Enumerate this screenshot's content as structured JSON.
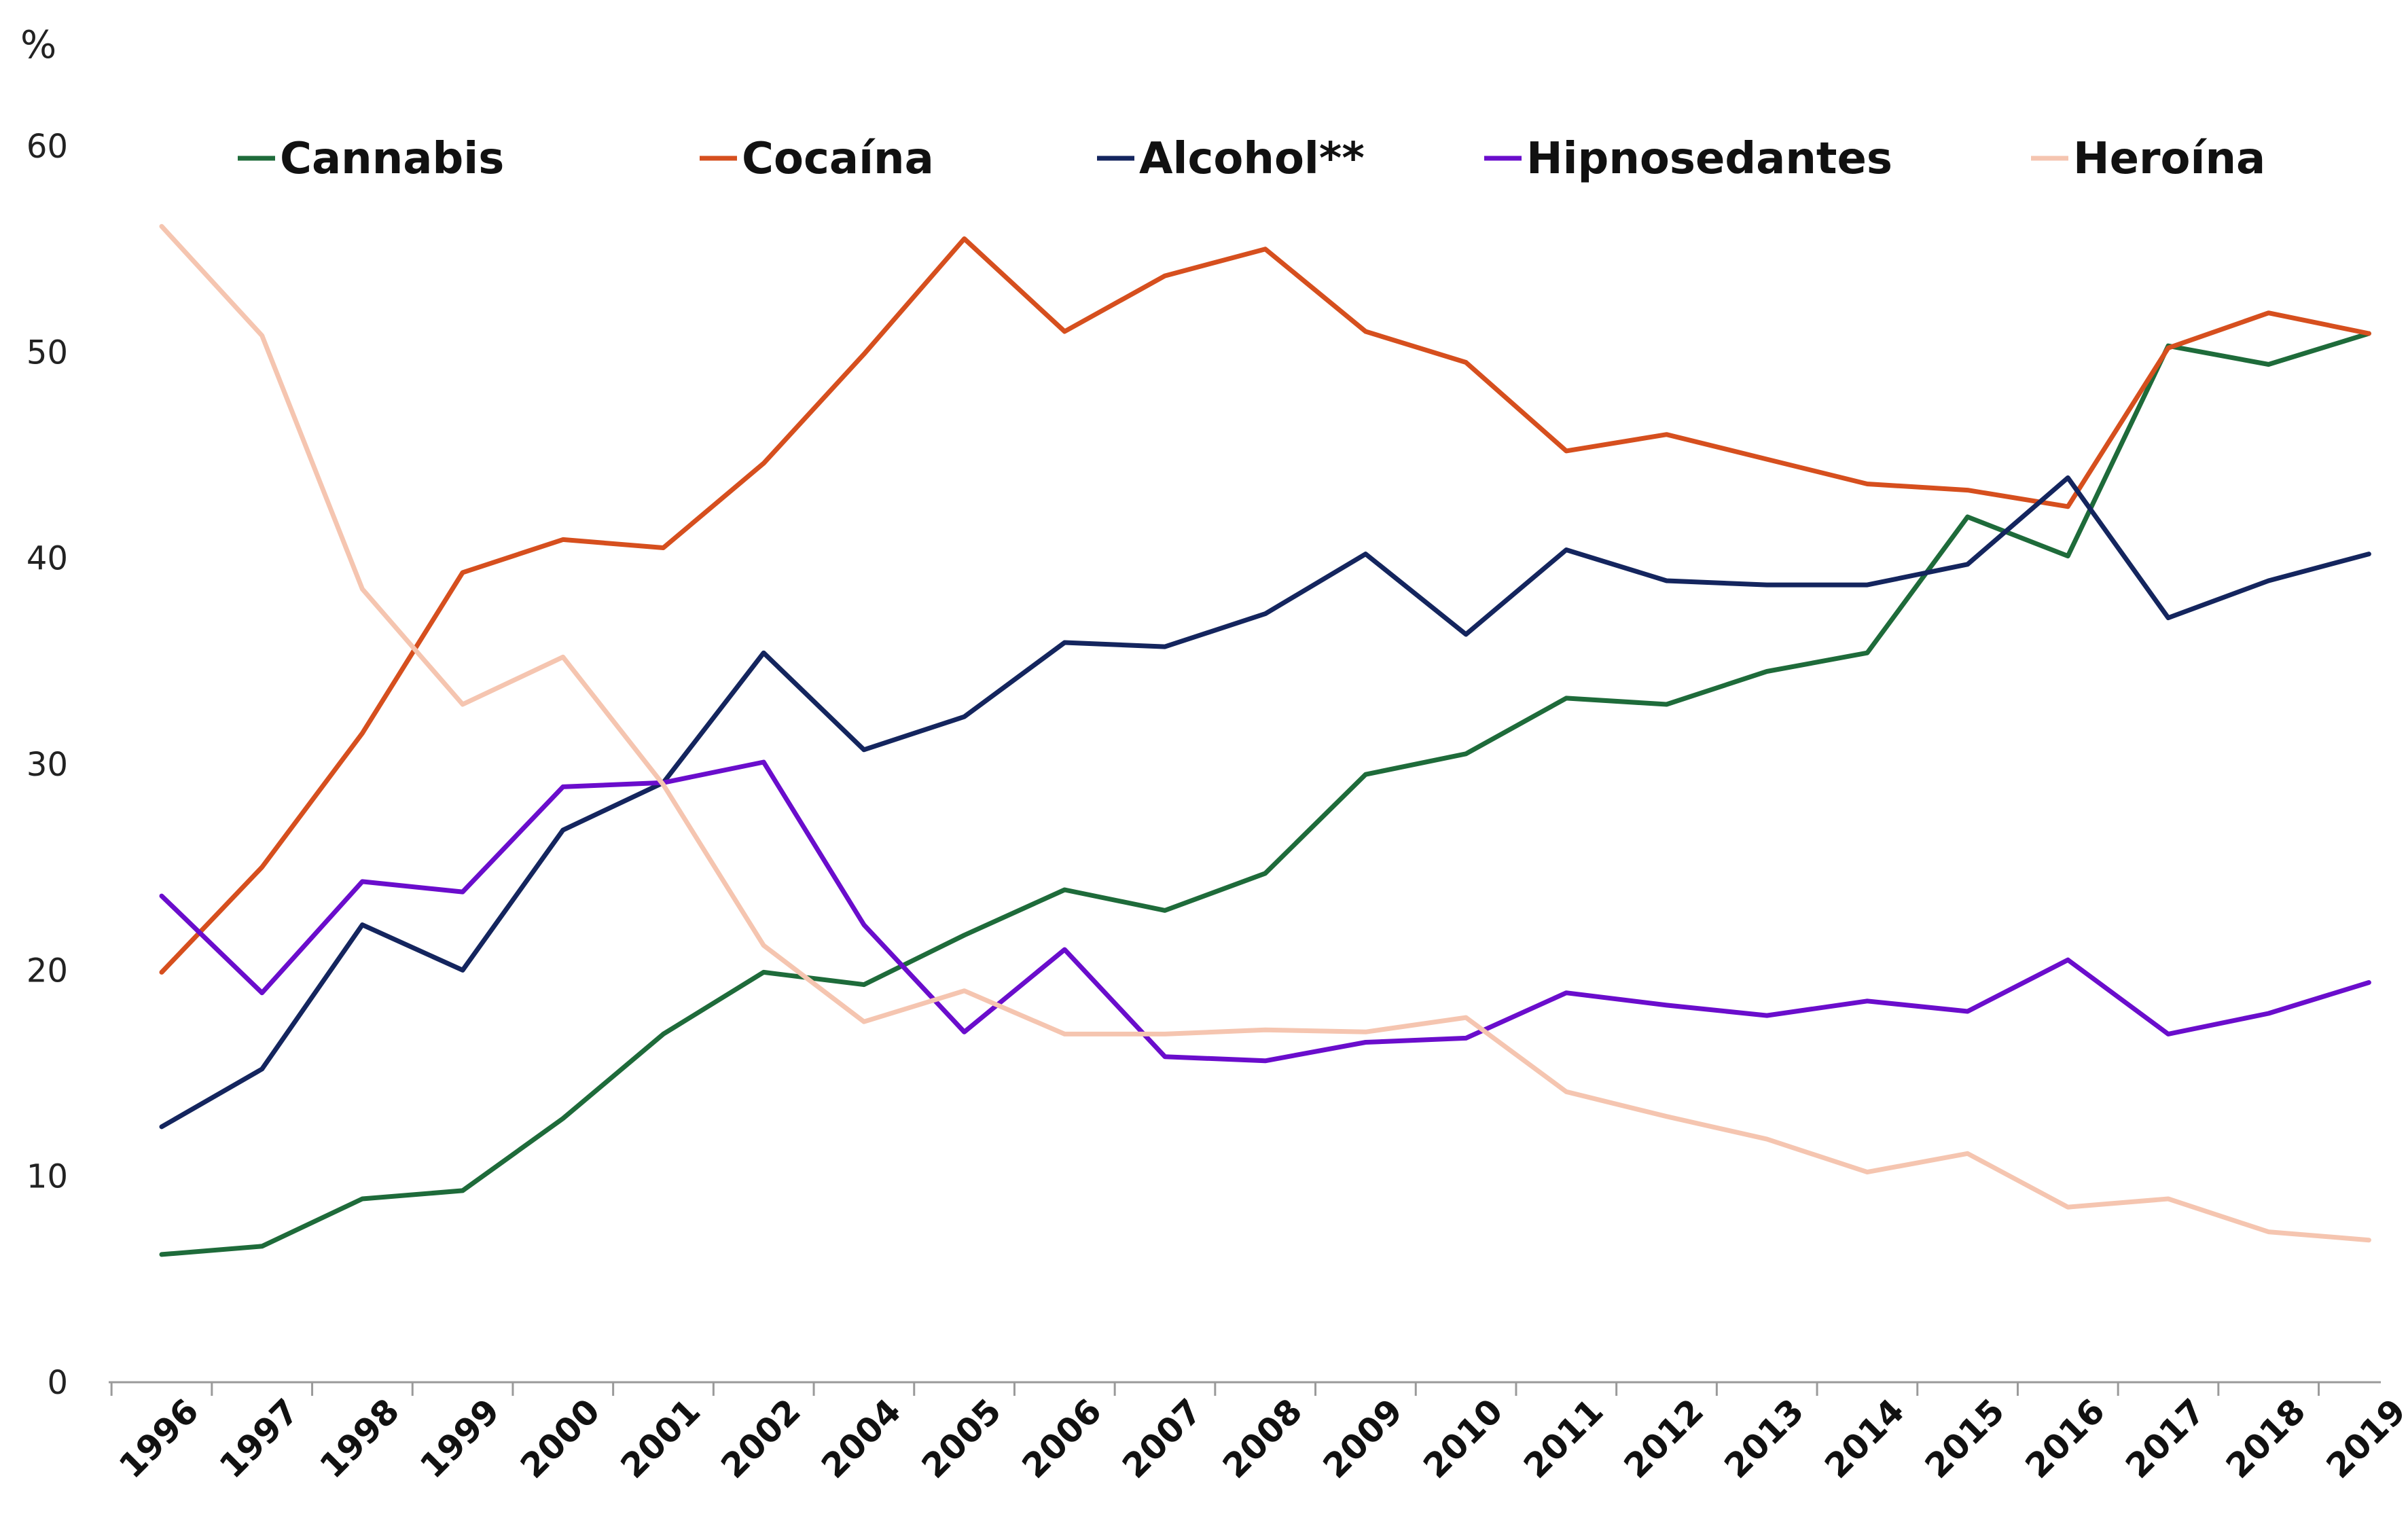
{
  "chart_data": {
    "type": "line",
    "y_unit": "%",
    "ylim": [
      0,
      60
    ],
    "y_ticks": [
      0,
      10,
      20,
      30,
      40,
      50,
      60
    ],
    "grid": false,
    "legend_position": "top",
    "categories": [
      "1996",
      "1997",
      "1998",
      "1999",
      "2000",
      "2001",
      "2002",
      "2004",
      "2005",
      "2006",
      "2007",
      "2008",
      "2009",
      "2010",
      "2011",
      "2012",
      "2013",
      "2014",
      "2015",
      "2016",
      "2017",
      "2018",
      "2019"
    ],
    "series": [
      {
        "name": "Cannabis",
        "color": "#1e6b3a",
        "values": [
          6.2,
          6.6,
          8.9,
          9.3,
          12.8,
          16.9,
          19.9,
          19.3,
          21.7,
          23.9,
          22.9,
          24.7,
          29.5,
          30.5,
          33.2,
          32.9,
          34.5,
          35.4,
          42.0,
          40.1,
          50.3,
          49.4,
          50.9
        ]
      },
      {
        "name": "Cocaína",
        "color": "#d64f1e",
        "values": [
          19.9,
          25.0,
          31.5,
          39.3,
          40.9,
          40.5,
          44.6,
          49.9,
          55.5,
          51.0,
          53.7,
          55.0,
          51.0,
          49.5,
          45.2,
          46.0,
          44.8,
          43.6,
          43.3,
          42.5,
          50.2,
          51.9,
          50.9
        ]
      },
      {
        "name": "Alcohol**",
        "color": "#14255e",
        "values": [
          12.4,
          15.2,
          22.2,
          20.0,
          26.8,
          29.1,
          35.4,
          30.7,
          32.3,
          35.9,
          35.7,
          37.3,
          40.2,
          36.3,
          40.4,
          38.9,
          38.7,
          38.7,
          39.7,
          43.9,
          37.1,
          38.9,
          40.2
        ]
      },
      {
        "name": "Hipnosedantes",
        "color": "#6a0dcc",
        "values": [
          23.6,
          18.9,
          24.3,
          23.8,
          28.9,
          29.1,
          30.1,
          22.2,
          17.0,
          21.0,
          15.8,
          15.6,
          16.5,
          16.7,
          18.9,
          18.3,
          17.8,
          18.5,
          18.0,
          20.5,
          16.9,
          17.9,
          19.4
        ]
      },
      {
        "name": "Heroína",
        "color": "#f5c5b0",
        "values": [
          56.1,
          50.8,
          38.5,
          32.9,
          35.2,
          29.0,
          21.2,
          17.5,
          19.0,
          16.9,
          16.9,
          17.1,
          17.0,
          17.7,
          14.1,
          12.9,
          11.8,
          10.2,
          11.1,
          8.5,
          8.9,
          7.3,
          6.9
        ]
      }
    ]
  }
}
